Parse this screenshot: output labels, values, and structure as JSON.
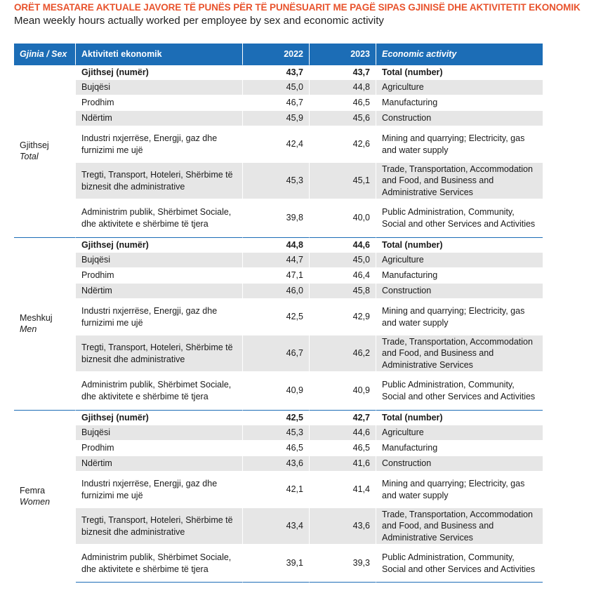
{
  "title_sq": "ORËT MESATARE AKTUALE JAVORE TË PUNËS PËR TË PUNËSUARIT ME PAGË SIPAS GJINISË DHE AKTIVITETIT EKONOMIK",
  "title_en": "Mean weekly hours actually worked per employee by sex and economic activity",
  "headers": {
    "sex": "Gjinia / Sex",
    "activity_sq": "Aktiviteti ekonomik",
    "year1": "2022",
    "year2": "2023",
    "activity_en": "Economic activity"
  },
  "groups": [
    {
      "sex_sq": "Gjithsej",
      "sex_en": "Total",
      "rows": [
        {
          "sq": "Gjithsej (numër)",
          "v2022": "43,7",
          "v2023": "43,7",
          "en": "Total (number)"
        },
        {
          "sq": "Bujqësi",
          "v2022": "45,0",
          "v2023": "44,8",
          "en": "Agriculture"
        },
        {
          "sq": "Prodhim",
          "v2022": "46,7",
          "v2023": "46,5",
          "en": "Manufacturing"
        },
        {
          "sq": "Ndërtim",
          "v2022": "45,9",
          "v2023": "45,6",
          "en": "Construction"
        },
        {
          "sq": "Industri nxjerrëse, Energji, gaz dhe furnizimi me ujë",
          "v2022": "42,4",
          "v2023": "42,6",
          "en": "Mining and quarrying; Electricity, gas and water supply"
        },
        {
          "sq": "Tregti, Transport, Hoteleri, Shërbime të biznesit dhe administrative",
          "v2022": "45,3",
          "v2023": "45,1",
          "en": "Trade, Transportation, Accommodation and Food, and Business and Administrative Services"
        },
        {
          "sq": "Administrim publik, Shërbimet Sociale, dhe aktivitete e shërbime të tjera",
          "v2022": "39,8",
          "v2023": "40,0",
          "en": "Public Administration, Community, Social and other Services and Activities"
        }
      ]
    },
    {
      "sex_sq": "Meshkuj",
      "sex_en": "Men",
      "rows": [
        {
          "sq": "Gjithsej (numër)",
          "v2022": "44,8",
          "v2023": "44,6",
          "en": "Total (number)"
        },
        {
          "sq": "Bujqësi",
          "v2022": "44,7",
          "v2023": "45,0",
          "en": "Agriculture"
        },
        {
          "sq": "Prodhim",
          "v2022": "47,1",
          "v2023": "46,4",
          "en": "Manufacturing"
        },
        {
          "sq": "Ndërtim",
          "v2022": "46,0",
          "v2023": "45,8",
          "en": "Construction"
        },
        {
          "sq": "Industri nxjerrëse, Energji, gaz dhe furnizimi me ujë",
          "v2022": "42,5",
          "v2023": "42,9",
          "en": "Mining and quarrying; Electricity, gas and water supply"
        },
        {
          "sq": "Tregti, Transport, Hoteleri, Shërbime të biznesit dhe administrative",
          "v2022": "46,7",
          "v2023": "46,2",
          "en": "Trade, Transportation, Accommodation and Food, and Business and Administrative Services"
        },
        {
          "sq": "Administrim publik, Shërbimet Sociale, dhe aktivitete e shërbime të tjera",
          "v2022": "40,9",
          "v2023": "40,9",
          "en": "Public Administration, Community, Social and other Services and Activities"
        }
      ]
    },
    {
      "sex_sq": "Femra",
      "sex_en": "Women",
      "rows": [
        {
          "sq": "Gjithsej (numër)",
          "v2022": "42,5",
          "v2023": "42,7",
          "en": "Total (number)"
        },
        {
          "sq": "Bujqësi",
          "v2022": "45,3",
          "v2023": "44,6",
          "en": "Agriculture"
        },
        {
          "sq": "Prodhim",
          "v2022": "46,5",
          "v2023": "46,5",
          "en": "Manufacturing"
        },
        {
          "sq": "Ndërtim",
          "v2022": "43,6",
          "v2023": "41,6",
          "en": "Construction"
        },
        {
          "sq": "Industri nxjerrëse, Energji, gaz dhe furnizimi me ujë",
          "v2022": "42,1",
          "v2023": "41,4",
          "en": "Mining and quarrying; Electricity, gas and water supply"
        },
        {
          "sq": "Tregti, Transport, Hoteleri, Shërbime të biznesit dhe administrative",
          "v2022": "43,4",
          "v2023": "43,6",
          "en": "Trade, Transportation, Accommodation and Food, and Business and Administrative Services"
        },
        {
          "sq": "Administrim publik, Shërbimet Sociale, dhe aktivitete e shërbime të tjera",
          "v2022": "39,1",
          "v2023": "39,3",
          "en": "Public Administration, Community, Social and other Services and Activities"
        }
      ]
    }
  ],
  "colors": {
    "header_bg": "#1c6db6",
    "title_accent": "#e8532d",
    "row_shade": "#e6e6e6"
  }
}
